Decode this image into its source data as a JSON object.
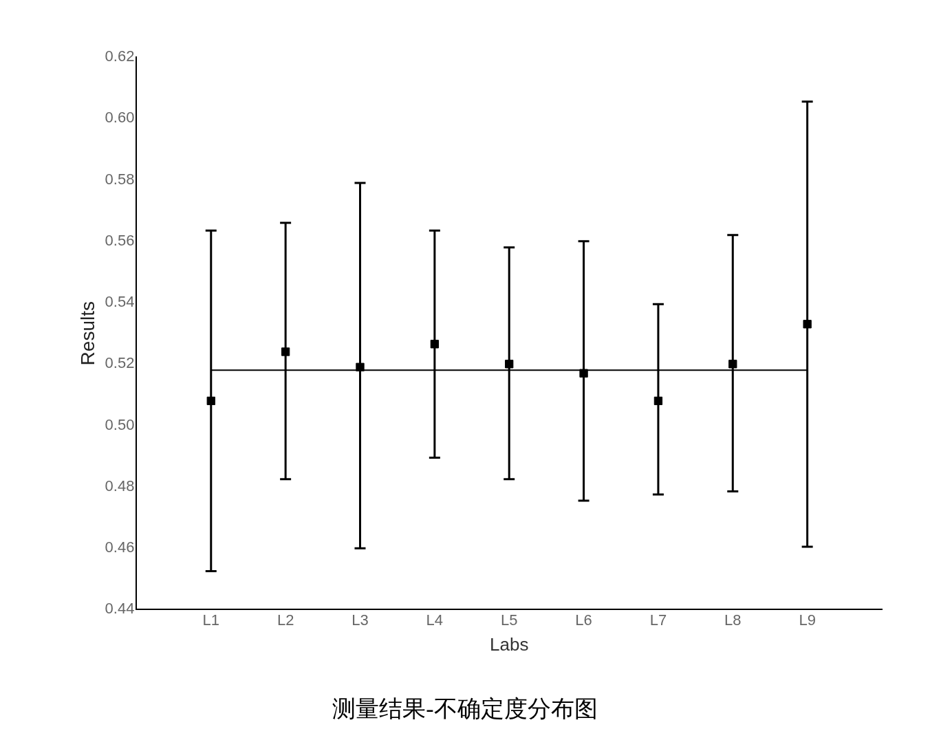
{
  "chart_data": {
    "type": "scatter",
    "title": "测量结果-不确定度分布图",
    "xlabel": "Labs",
    "ylabel": "Results",
    "categories": [
      "L1",
      "L2",
      "L3",
      "L4",
      "L5",
      "L6",
      "L7",
      "L8",
      "L9"
    ],
    "ylim": [
      0.44,
      0.62
    ],
    "yticks": [
      0.44,
      0.46,
      0.48,
      {
        "value": 0.5,
        "label": "0.50"
      },
      0.52,
      0.54,
      0.56,
      0.58,
      {
        "value": 0.6,
        "label": "0.60"
      },
      0.62
    ],
    "grid": false,
    "legend": false,
    "series": [
      {
        "color": "#000000",
        "marker": "square",
        "values": [
          0.508,
          0.524,
          0.519,
          0.5265,
          0.52,
          0.517,
          0.508,
          0.52,
          0.533
        ],
        "errors": [
          [
            0.4525,
            0.5635
          ],
          [
            0.4825,
            0.566
          ],
          [
            0.46,
            0.579
          ],
          [
            0.4895,
            0.5635
          ],
          [
            0.4825,
            0.558
          ],
          [
            0.4755,
            0.56
          ],
          [
            0.4775,
            0.5395
          ],
          [
            0.4785,
            0.562
          ],
          [
            0.4605,
            0.6055
          ]
        ]
      },
      {
        "type": "line",
        "color": "#000000",
        "marker": "none",
        "line_style": "solid",
        "values": [
          0.518,
          0.518,
          0.518,
          0.518,
          0.518,
          0.518,
          0.518,
          0.518,
          0.518
        ]
      }
    ]
  }
}
